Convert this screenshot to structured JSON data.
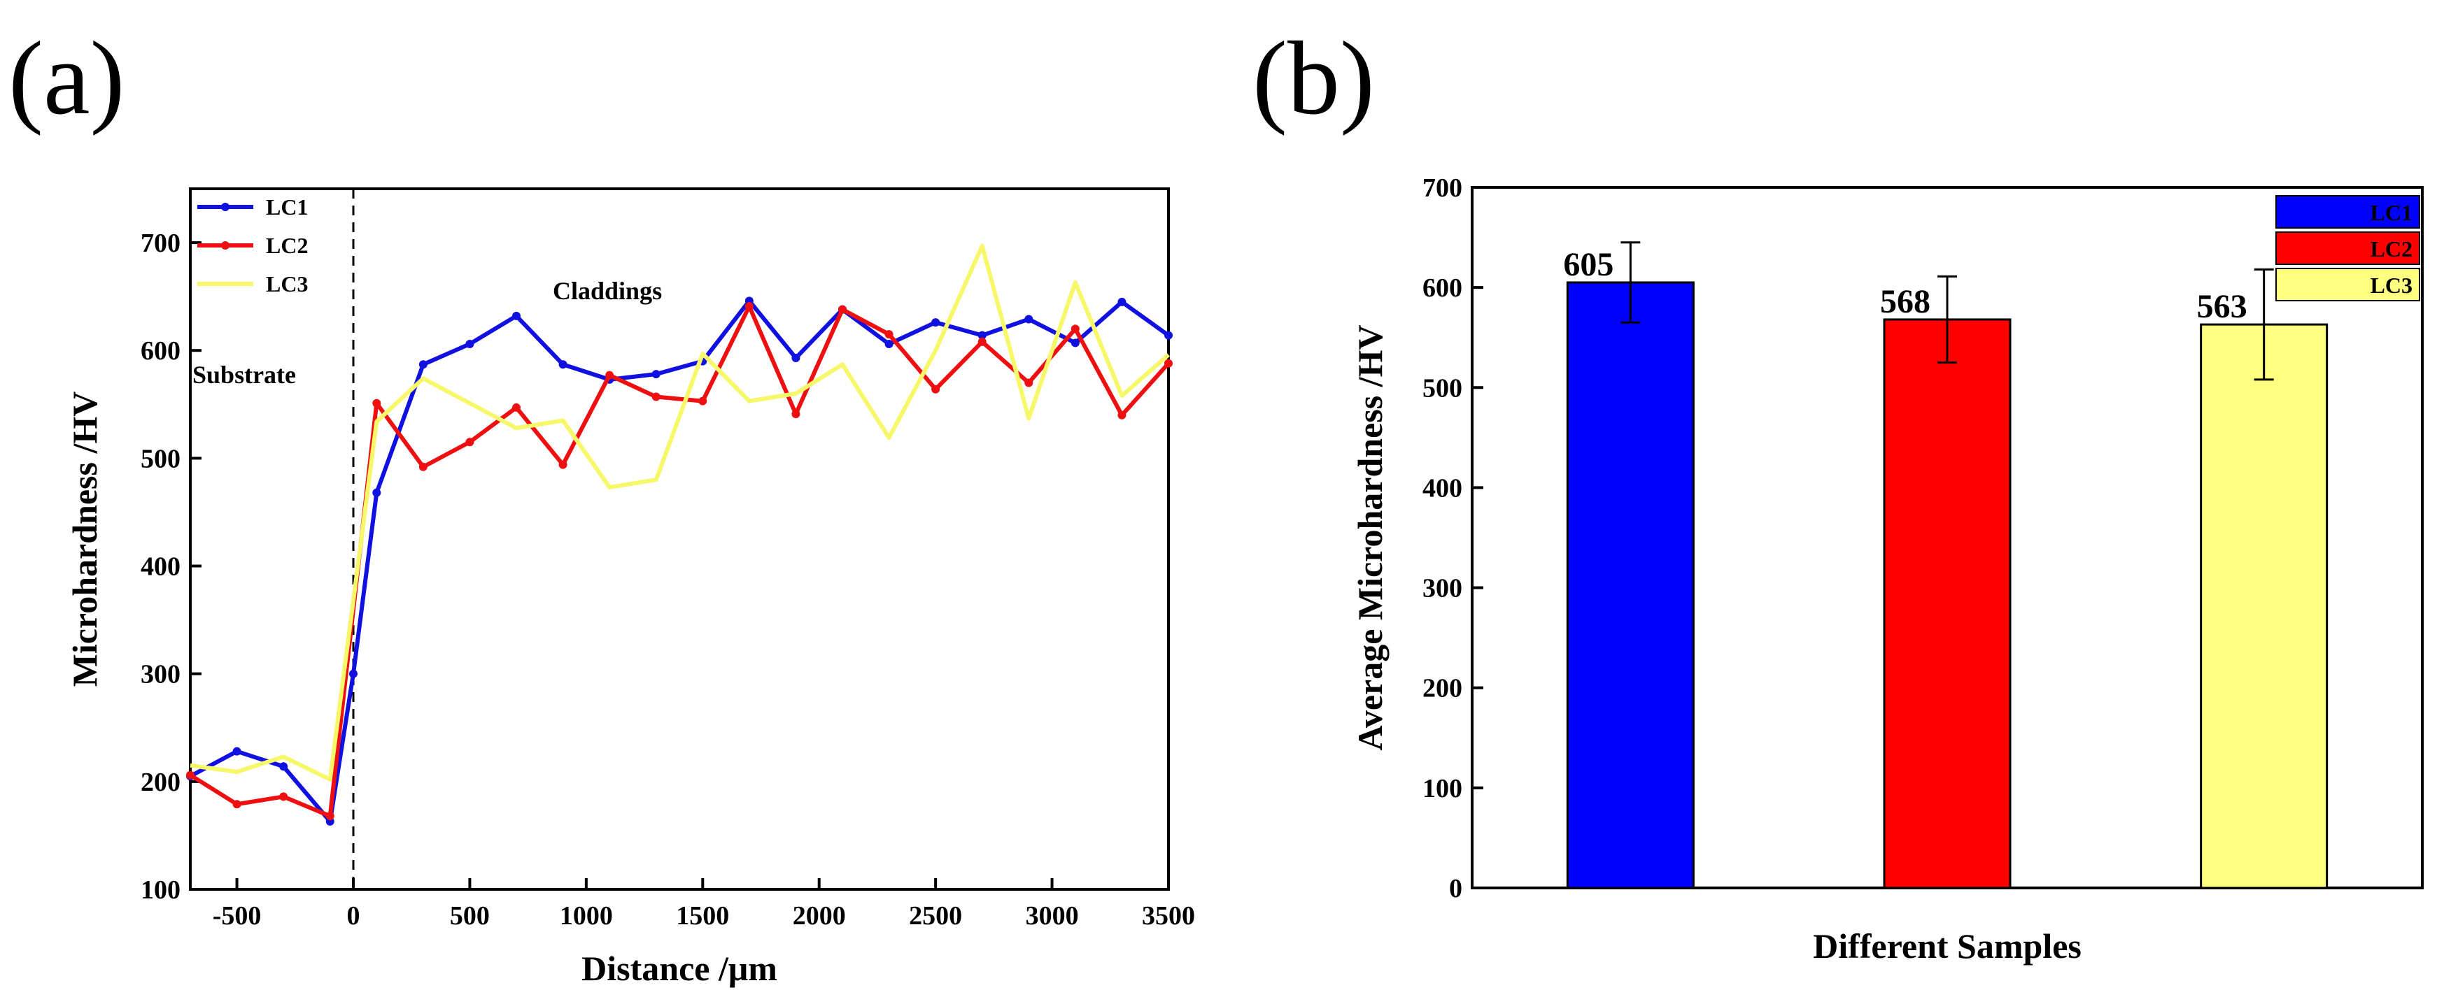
{
  "panel_labels": {
    "a": "(a)",
    "b": "(b)"
  },
  "chart_data": [
    {
      "type": "line",
      "xlabel": "Distance /μm",
      "ylabel": "Microhardness /HV",
      "xlim": [
        -700,
        3500
      ],
      "ylim": [
        100,
        750
      ],
      "xticks": [
        -500,
        0,
        500,
        1000,
        1500,
        2000,
        2500,
        3000,
        3500
      ],
      "yticks": [
        100,
        200,
        300,
        400,
        500,
        600,
        700
      ],
      "annotations": {
        "substrate": "Substrate",
        "claddings": "Claddings"
      },
      "boundary_x": 0,
      "series": [
        {
          "name": "LC1",
          "color": "#1010e0",
          "marker": true,
          "x": [
            -700,
            -500,
            -300,
            -100,
            0,
            100,
            300,
            500,
            700,
            900,
            1100,
            1300,
            1500,
            1700,
            1900,
            2100,
            2300,
            2500,
            2700,
            2900,
            3100,
            3300,
            3500
          ],
          "y": [
            205,
            228,
            214,
            163,
            300,
            468,
            587,
            606,
            632,
            587,
            573,
            578,
            590,
            646,
            593,
            638,
            606,
            626,
            614,
            629,
            607,
            645,
            614
          ]
        },
        {
          "name": "LC2",
          "color": "#ee1010",
          "marker": true,
          "x": [
            -700,
            -500,
            -300,
            -100,
            100,
            300,
            500,
            700,
            900,
            1100,
            1300,
            1500,
            1700,
            1900,
            2100,
            2300,
            2500,
            2700,
            2900,
            3100,
            3300,
            3500
          ],
          "y": [
            206,
            179,
            186,
            168,
            551,
            492,
            515,
            547,
            494,
            577,
            557,
            553,
            641,
            541,
            638,
            615,
            564,
            608,
            570,
            620,
            540,
            588
          ]
        },
        {
          "name": "LC3",
          "color": "#f7f76a",
          "marker": false,
          "x": [
            -700,
            -500,
            -300,
            -100,
            100,
            300,
            500,
            700,
            900,
            1100,
            1300,
            1500,
            1700,
            1900,
            2100,
            2300,
            2500,
            2700,
            2900,
            3100,
            3300,
            3500
          ],
          "y": [
            215,
            209,
            223,
            202,
            534,
            574,
            551,
            528,
            535,
            473,
            480,
            597,
            553,
            560,
            587,
            519,
            600,
            697,
            537,
            663,
            558,
            596
          ]
        }
      ]
    },
    {
      "type": "bar",
      "xlabel": "Different Samples",
      "ylabel": "Average Microhardness /HV",
      "ylim": [
        0,
        700
      ],
      "yticks": [
        0,
        100,
        200,
        300,
        400,
        500,
        600,
        700
      ],
      "categories": [
        "LC1",
        "LC2",
        "LC3"
      ],
      "values": [
        605,
        568,
        563
      ],
      "errors": [
        40,
        43,
        55
      ],
      "value_labels": [
        "605",
        "568",
        "563"
      ],
      "colors": [
        "#0000ff",
        "#ff0000",
        "#ffff80"
      ]
    }
  ]
}
